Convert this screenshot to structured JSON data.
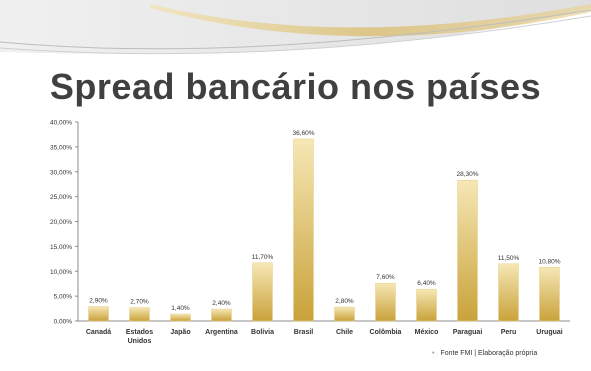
{
  "slide": {
    "title": "Spread bancário nos países",
    "source": "Fonte FMI | Elaboração própria"
  },
  "colors": {
    "bar_light": "#f6e7b5",
    "bar_dark": "#c9a23a",
    "title": "#404040",
    "deco_gray": "#d9d9d9",
    "deco_gold": "#d8b862"
  },
  "chart_data": {
    "type": "bar",
    "title": "",
    "xlabel": "",
    "ylabel": "",
    "ylim": [
      0,
      40
    ],
    "yticks": [
      "0,00%",
      "5,00%",
      "10,00%",
      "15,00%",
      "20,00%",
      "25,00%",
      "30,00%",
      "35,00%",
      "40,00%"
    ],
    "categories": [
      "Canadá",
      "Estados Unidos",
      "Japão",
      "Argentina",
      "Bolívia",
      "Brasil",
      "Chile",
      "Colômbia",
      "México",
      "Paraguai",
      "Peru",
      "Uruguai"
    ],
    "values": [
      2.9,
      2.7,
      1.4,
      2.4,
      11.7,
      36.6,
      2.8,
      7.6,
      6.4,
      28.3,
      11.5,
      10.8
    ],
    "labels": [
      "2,90%",
      "2,70%",
      "1,40%",
      "2,40%",
      "11,70%",
      "36,60%",
      "2,80%",
      "7,60%",
      "6,40%",
      "28,30%",
      "11,50%",
      "10,80%"
    ],
    "grid": false,
    "legend": "none"
  }
}
